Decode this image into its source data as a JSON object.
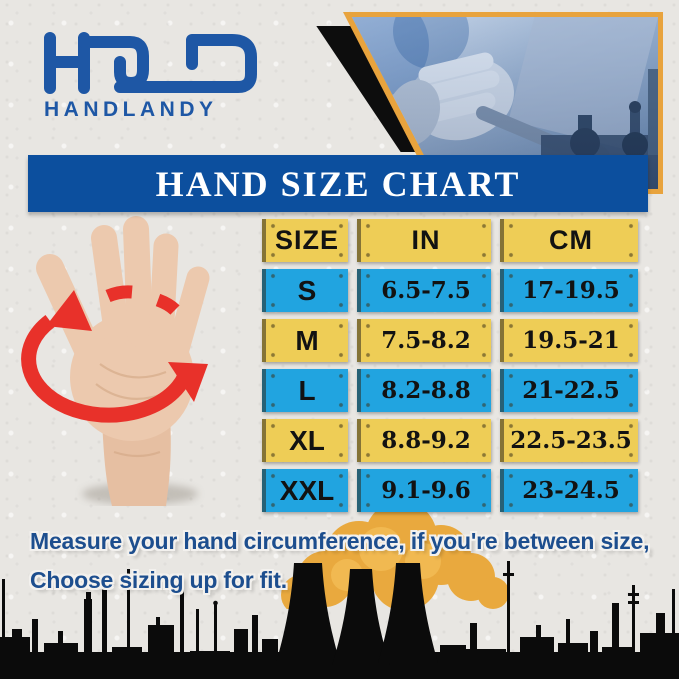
{
  "brand": {
    "name": "HANDLANDY",
    "logo_color": "#1e57a5",
    "logo_icon": "handlandy-hld-monogram"
  },
  "hero": {
    "photo": "gloved-hands-with-wrench-on-machinery-photo",
    "border_color": "#e8a33d"
  },
  "banner": {
    "title": "HAND SIZE CHART",
    "bg_color": "#0c4f9e",
    "text_color": "#ffffff"
  },
  "chart_data": {
    "type": "table",
    "title": "HAND SIZE CHART",
    "columns": [
      "SIZE",
      "IN",
      "CM"
    ],
    "rows": [
      [
        "S",
        "6.5-7.5",
        "17-19.5"
      ],
      [
        "M",
        "7.5-8.2",
        "19.5-21"
      ],
      [
        "L",
        "8.2-8.8",
        "21-22.5"
      ],
      [
        "XL",
        "8.8-9.2",
        "22.5-23.5"
      ],
      [
        "XXL",
        "9.1-9.6",
        "23-24.5"
      ]
    ],
    "header_plate_color": "#eecd56",
    "row_plate_colors_alternating": [
      "#21a4e0",
      "#eecd56"
    ]
  },
  "hand_graphic": {
    "icon": "open-palm-with-circumference-arrow",
    "arrow_color": "#e8312a",
    "skin_color": "#ecc9ae"
  },
  "note": {
    "line1": "Measure your hand circumference, if you're between size,",
    "line2": "Choose sizing up for fit.",
    "text_color": "#1d4e8e"
  },
  "footer_art": {
    "skyline_icon": "industrial-skyline-silhouette",
    "smoke_icon": "orange-smoke-clouds",
    "smoke_color": "#e9a93e",
    "silhouette_color": "#0b0b0b"
  }
}
